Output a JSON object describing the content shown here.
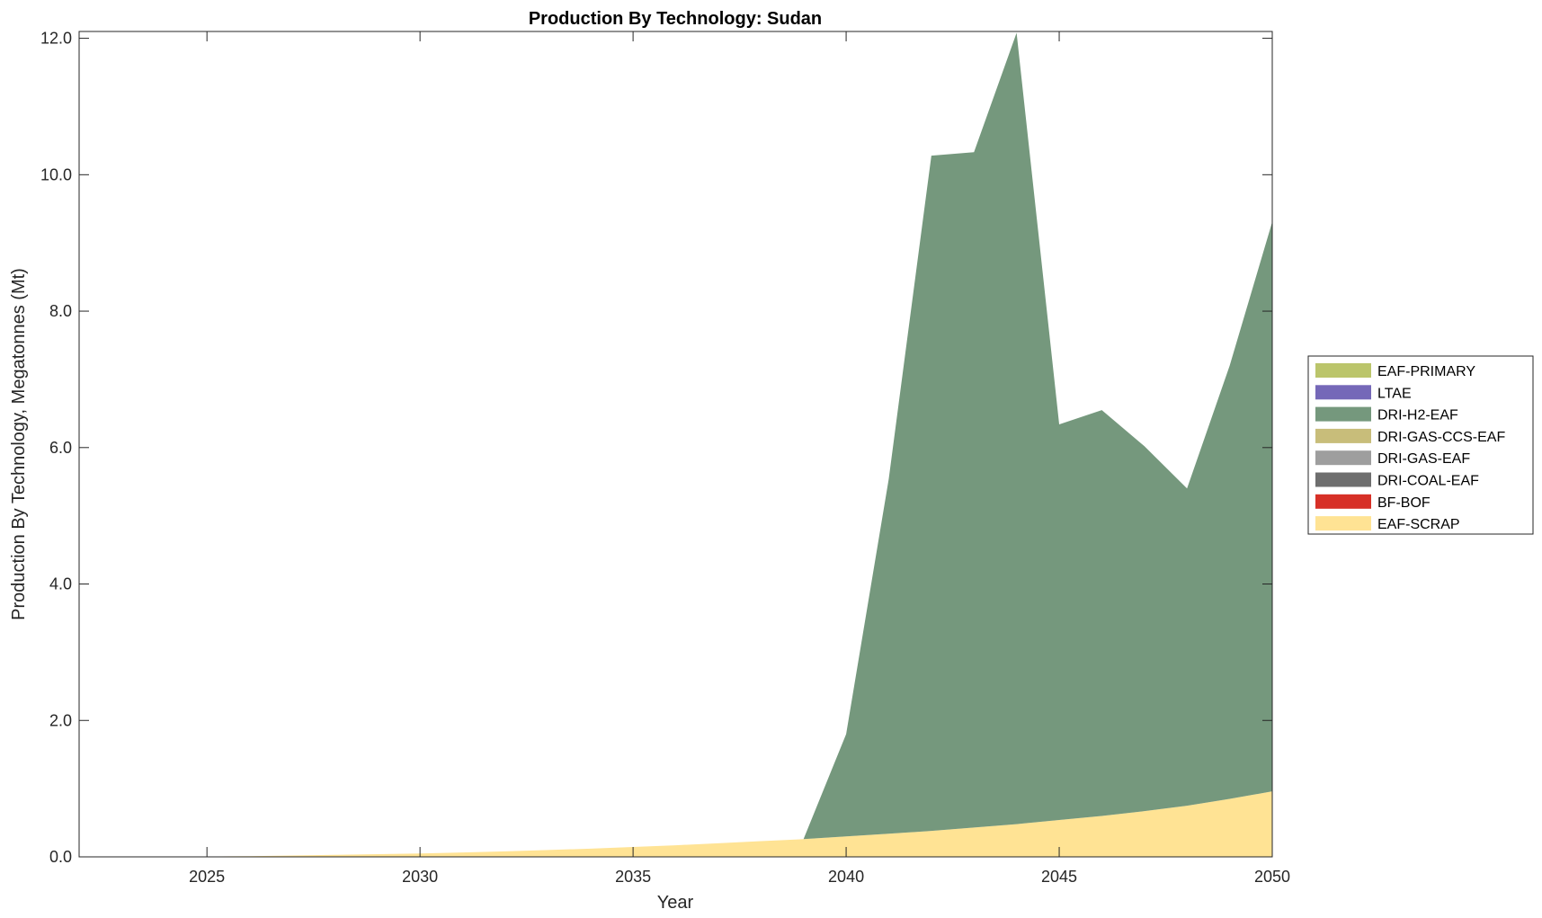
{
  "chart_data": {
    "type": "area",
    "stacked": true,
    "title": "Production By Technology: Sudan",
    "xlabel": "Year",
    "ylabel": "Production By Technology, Megatonnes (Mt)",
    "xlim": [
      2022,
      2050
    ],
    "ylim": [
      0,
      12.1
    ],
    "xticks": [
      "2025",
      "2030",
      "2035",
      "2040",
      "2045",
      "2050"
    ],
    "yticks": [
      "0.0",
      "2.0",
      "4.0",
      "6.0",
      "8.0",
      "10.0",
      "12.0"
    ],
    "legend_position": "right",
    "grid": false,
    "x": [
      2022,
      2023,
      2024,
      2025,
      2026,
      2027,
      2028,
      2029,
      2030,
      2031,
      2032,
      2033,
      2034,
      2035,
      2036,
      2037,
      2038,
      2039,
      2040,
      2041,
      2042,
      2043,
      2044,
      2045,
      2046,
      2047,
      2048,
      2049,
      2050
    ],
    "series": [
      {
        "name": "EAF-SCRAP",
        "color": "#FFE394",
        "values": [
          0,
          0,
          0,
          0.005,
          0.01,
          0.02,
          0.03,
          0.04,
          0.05,
          0.065,
          0.08,
          0.1,
          0.12,
          0.145,
          0.17,
          0.2,
          0.23,
          0.26,
          0.3,
          0.34,
          0.38,
          0.43,
          0.48,
          0.54,
          0.6,
          0.67,
          0.75,
          0.85,
          0.96
        ]
      },
      {
        "name": "BF-BOF",
        "color": "#D73027",
        "values": [
          0,
          0,
          0,
          0,
          0,
          0,
          0,
          0,
          0,
          0,
          0,
          0,
          0,
          0,
          0,
          0,
          0,
          0,
          0,
          0,
          0,
          0,
          0,
          0,
          0,
          0,
          0,
          0,
          0
        ]
      },
      {
        "name": "DRI-COAL-EAF",
        "color": "#6E6E6E",
        "values": [
          0,
          0,
          0,
          0,
          0,
          0,
          0,
          0,
          0,
          0,
          0,
          0,
          0,
          0,
          0,
          0,
          0,
          0,
          0,
          0,
          0,
          0,
          0,
          0,
          0,
          0,
          0,
          0,
          0
        ]
      },
      {
        "name": "DRI-GAS-EAF",
        "color": "#9E9E9E",
        "values": [
          0,
          0,
          0,
          0,
          0,
          0,
          0,
          0,
          0,
          0,
          0,
          0,
          0,
          0,
          0,
          0,
          0,
          0,
          0,
          0,
          0,
          0,
          0,
          0,
          0,
          0,
          0,
          0,
          0
        ]
      },
      {
        "name": "DRI-GAS-CCS-EAF",
        "color": "#C8BD7A",
        "values": [
          0,
          0,
          0,
          0,
          0,
          0,
          0,
          0,
          0,
          0,
          0,
          0,
          0,
          0,
          0,
          0,
          0,
          0,
          0,
          0,
          0,
          0,
          0,
          0,
          0,
          0,
          0,
          0,
          0
        ]
      },
      {
        "name": "DRI-H2-EAF",
        "color": "#75987D",
        "values": [
          0,
          0,
          0,
          0,
          0,
          0,
          0,
          0,
          0,
          0,
          0,
          0,
          0,
          0,
          0,
          0,
          0,
          0,
          1.5,
          5.2,
          9.9,
          9.9,
          11.6,
          5.8,
          5.95,
          5.35,
          4.65,
          6.35,
          8.35
        ]
      },
      {
        "name": "LTAE",
        "color": "#7568B8",
        "values": [
          0,
          0,
          0,
          0,
          0,
          0,
          0,
          0,
          0,
          0,
          0,
          0,
          0,
          0,
          0,
          0,
          0,
          0,
          0,
          0,
          0,
          0,
          0,
          0,
          0,
          0,
          0,
          0,
          0
        ]
      },
      {
        "name": "EAF-PRIMARY",
        "color": "#BBC56B",
        "values": [
          0,
          0,
          0,
          0,
          0,
          0,
          0,
          0,
          0,
          0,
          0,
          0,
          0,
          0,
          0,
          0,
          0,
          0,
          0,
          0,
          0,
          0,
          0,
          0,
          0,
          0,
          0,
          0,
          0
        ]
      }
    ],
    "legend_order": [
      "EAF-PRIMARY",
      "LTAE",
      "DRI-H2-EAF",
      "DRI-GAS-CCS-EAF",
      "DRI-GAS-EAF",
      "DRI-COAL-EAF",
      "BF-BOF",
      "EAF-SCRAP"
    ]
  }
}
